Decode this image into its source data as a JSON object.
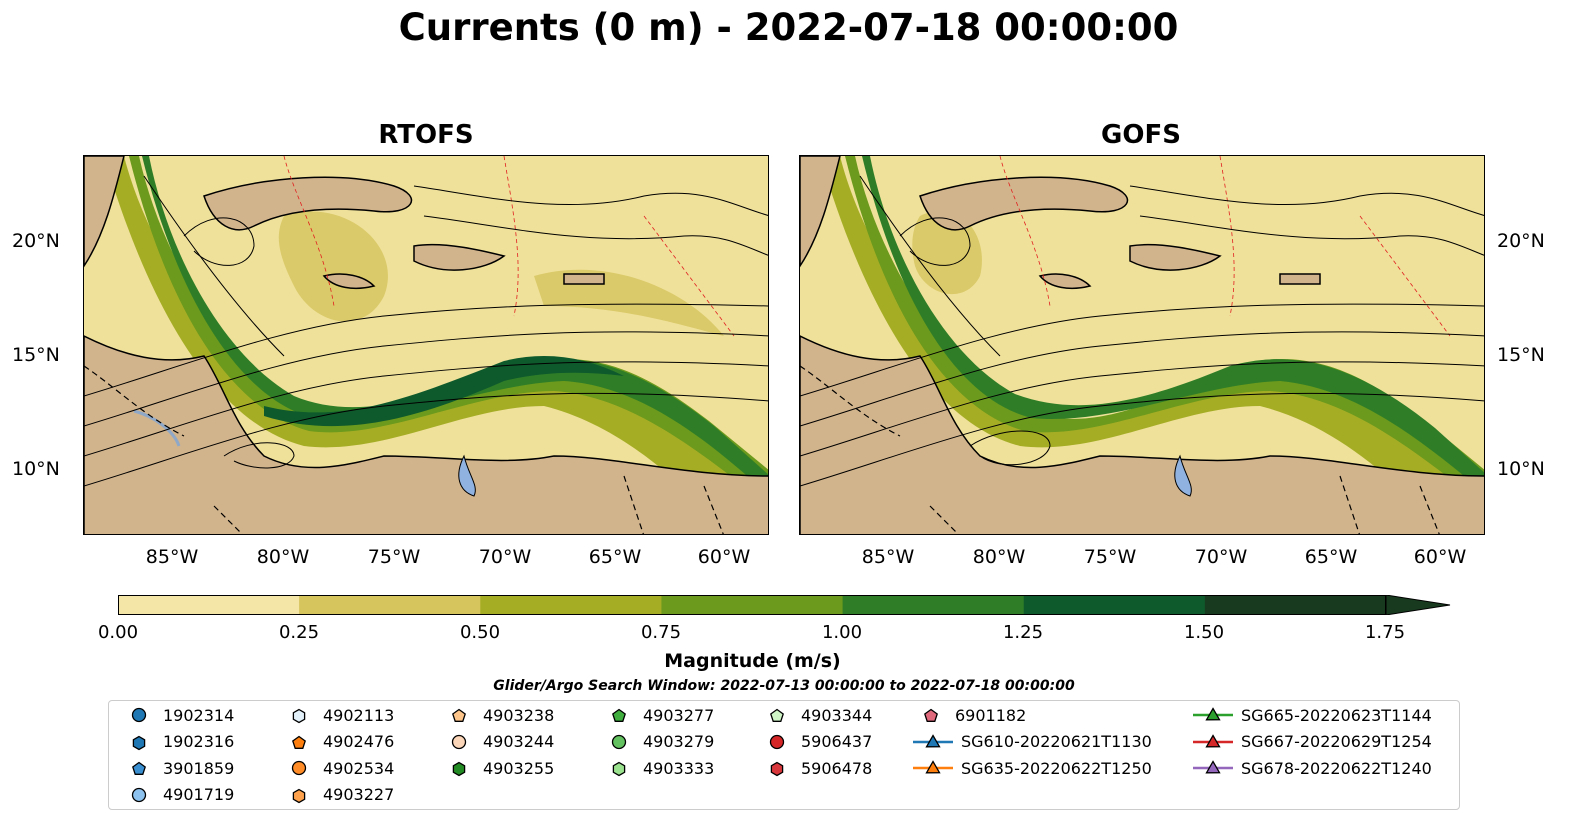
{
  "title": "Currents (0 m) - 2022-07-18 00:00:00",
  "panels": [
    {
      "title": "RTOFS"
    },
    {
      "title": "GOFS"
    }
  ],
  "lat_ticks": [
    "20°N",
    "15°N",
    "10°N"
  ],
  "lon_ticks": [
    "85°W",
    "80°W",
    "75°W",
    "70°W",
    "65°W",
    "60°W"
  ],
  "colorbar": {
    "label": "Magnitude (m/s)",
    "ticks": [
      "0.00",
      "0.25",
      "0.50",
      "0.75",
      "1.00",
      "1.25",
      "1.50",
      "1.75"
    ],
    "colors": [
      "#f3e6a6",
      "#d6c45c",
      "#a5ad25",
      "#6c9a1c",
      "#2f7e27",
      "#0f5a2c",
      "#183a1f"
    ]
  },
  "search_window": "Glider/Argo Search Window: 2022-07-13 00:00:00 to 2022-07-18 00:00:00",
  "legend": [
    {
      "label": "1902314",
      "marker": "circle",
      "color": "#1f77b4"
    },
    {
      "label": "1902316",
      "marker": "hexagon",
      "color": "#1f77b4"
    },
    {
      "label": "3901859",
      "marker": "pentagon",
      "color": "#3a8fd1"
    },
    {
      "label": "4901719",
      "marker": "circle",
      "color": "#8ec2ee"
    },
    {
      "label": "4902113",
      "marker": "hexagon",
      "color": "#e3f1fb"
    },
    {
      "label": "4902476",
      "marker": "pentagon",
      "color": "#ff7f0e"
    },
    {
      "label": "4902534",
      "marker": "circle",
      "color": "#ff8c26"
    },
    {
      "label": "4903227",
      "marker": "hexagon",
      "color": "#ffa24d"
    },
    {
      "label": "4903238",
      "marker": "pentagon",
      "color": "#fdc58a"
    },
    {
      "label": "4903244",
      "marker": "circle",
      "color": "#fcd6b8"
    },
    {
      "label": "4903255",
      "marker": "hexagon",
      "color": "#238b23"
    },
    {
      "label": "4903277",
      "marker": "pentagon",
      "color": "#3fae3f"
    },
    {
      "label": "4903279",
      "marker": "circle",
      "color": "#63c25f"
    },
    {
      "label": "4903333",
      "marker": "hexagon",
      "color": "#9be28f"
    },
    {
      "label": "4903344",
      "marker": "pentagon",
      "color": "#cff5c6"
    },
    {
      "label": "5906437",
      "marker": "circle",
      "color": "#d62728"
    },
    {
      "label": "5906478",
      "marker": "hexagon",
      "color": "#d8383c"
    },
    {
      "label": "6901182",
      "marker": "pentagon",
      "color": "#e0697c"
    },
    {
      "label": "SG610-20220621T1130",
      "marker": "triangle",
      "color": "#1f77b4",
      "line": true
    },
    {
      "label": "SG635-20220622T1250",
      "marker": "triangle",
      "color": "#ff7f0e",
      "line": true
    },
    {
      "label": "SG665-20220623T1144",
      "marker": "triangle",
      "color": "#2ca02c",
      "line": true
    },
    {
      "label": "SG667-20220629T1254",
      "marker": "triangle",
      "color": "#d62728",
      "line": true
    },
    {
      "label": "SG678-20220622T1240",
      "marker": "triangle",
      "color": "#9467bd",
      "line": true
    }
  ]
}
